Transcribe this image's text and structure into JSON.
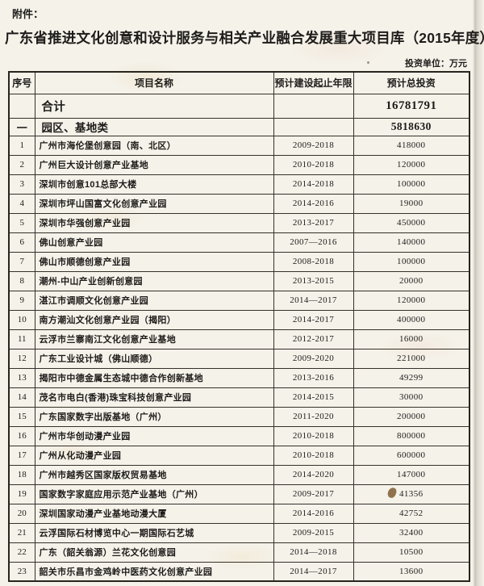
{
  "page": {
    "attachment_label": "附件：",
    "title": "广东省推进文化创意和设计服务与相关产业融合发展重大项目库（2015年度）",
    "unit_note": "投资单位：万元"
  },
  "table": {
    "columns": [
      "序号",
      "项目名称",
      "预计建设起止年限",
      "预计总投资"
    ],
    "summary_row": {
      "no": "",
      "name": "合计",
      "years": "",
      "investment": "16781791"
    },
    "section_row": {
      "no": "一",
      "name": "园区、基地类",
      "years": "",
      "investment": "5818630"
    },
    "rows": [
      {
        "no": "1",
        "name": "广州市海伦堡创意园（南、北区）",
        "years": "2009-2018",
        "investment": "418000"
      },
      {
        "no": "2",
        "name": "广州巨大设计创意产业基地",
        "years": "2010-2018",
        "investment": "120000"
      },
      {
        "no": "3",
        "name": "深圳市创意101总部大楼",
        "years": "2014-2018",
        "investment": "100000"
      },
      {
        "no": "4",
        "name": "深圳市坪山国富文化创意产业园",
        "years": "2014-2016",
        "investment": "19000"
      },
      {
        "no": "5",
        "name": "深圳市华强创意产业园",
        "years": "2013-2017",
        "investment": "450000"
      },
      {
        "no": "6",
        "name": "佛山创意产业园",
        "years": "2007—2016",
        "investment": "140000"
      },
      {
        "no": "7",
        "name": "佛山市顺德创意产业园",
        "years": "2008-2018",
        "investment": "100000"
      },
      {
        "no": "8",
        "name": "潮州-中山产业创新创意园",
        "years": "2013-2015",
        "investment": "20000"
      },
      {
        "no": "9",
        "name": "湛江市调顺文化创意产业园",
        "years": "2014—2017",
        "investment": "120000"
      },
      {
        "no": "10",
        "name": "南方潮汕文化创意产业园（揭阳）",
        "years": "2014-2017",
        "investment": "400000"
      },
      {
        "no": "11",
        "name": "云浮市兰寨南江文化创意产业基地",
        "years": "2012-2017",
        "investment": "16000"
      },
      {
        "no": "12",
        "name": "广东工业设计城（佛山顺德）",
        "years": "2009-2020",
        "investment": "221000"
      },
      {
        "no": "13",
        "name": "揭阳市中德金属生态城中德合作创新基地",
        "years": "2013-2016",
        "investment": "49299"
      },
      {
        "no": "14",
        "name": "茂名市电白(香港)珠宝科技创意产业园",
        "years": "2014-2015",
        "investment": "30000"
      },
      {
        "no": "15",
        "name": "广东国家数字出版基地（广州）",
        "years": "2011-2020",
        "investment": "200000"
      },
      {
        "no": "16",
        "name": "广州市华创动漫产业园",
        "years": "2010-2018",
        "investment": "800000"
      },
      {
        "no": "17",
        "name": "广州从化动漫产业园",
        "years": "2010-2018",
        "investment": "600000"
      },
      {
        "no": "18",
        "name": "广州市越秀区国家版权贸易基地",
        "years": "2014-2020",
        "investment": "147000"
      },
      {
        "no": "19",
        "name": "国家数字家庭应用示范产业基地（广州）",
        "years": "2009-2017",
        "investment": "41356"
      },
      {
        "no": "20",
        "name": "深圳国家动漫产业基地动漫大厦",
        "years": "2014-2016",
        "investment": "42752"
      },
      {
        "no": "21",
        "name": "云浮国际石材博览中心一期国际石艺城",
        "years": "2009-2015",
        "investment": "32400"
      },
      {
        "no": "22",
        "name": "广东（韶关翁源）兰花文化创意园",
        "years": "2014—2018",
        "investment": "10500"
      },
      {
        "no": "23",
        "name": "韶关市乐昌市金鸡岭中医药文化创意产业园",
        "years": "2014—2017",
        "investment": "13600"
      }
    ]
  },
  "colors": {
    "paper": "#f5f2ea",
    "ink": "#1e1c1a",
    "border": "#35312a",
    "stain": "#7d5c30"
  }
}
